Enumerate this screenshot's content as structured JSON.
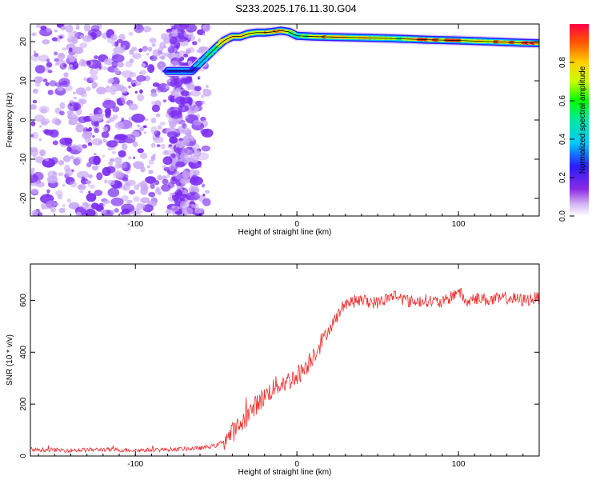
{
  "title": "S233.2025.176.11.30.G04",
  "chart_data": [
    {
      "type": "heatmap",
      "xlabel": "Height of straight line (km)",
      "ylabel": "Frequency (Hz)",
      "xlim": [
        -165,
        150
      ],
      "ylim": [
        -24.5,
        24.5
      ],
      "xticks": [
        -100,
        0,
        100
      ],
      "yticks": [
        -20,
        -10,
        0,
        10,
        20
      ],
      "colorbar": {
        "label": "Normalized spectral amplitude",
        "range": [
          0,
          1
        ],
        "ticks": [
          "0.0",
          "0.2",
          "0.4",
          "0.6",
          "0.8"
        ]
      },
      "ridge": {
        "x": [
          -80,
          -65,
          -60,
          -55,
          -50,
          -45,
          -40,
          -35,
          -30,
          -25,
          -20,
          -15,
          -10,
          -5,
          0,
          10,
          20,
          40,
          60,
          80,
          100,
          120,
          140,
          150
        ],
        "y": [
          12.5,
          12.5,
          14.5,
          16.5,
          18.5,
          20.3,
          21.3,
          21.3,
          22.0,
          22.3,
          22.3,
          22.5,
          22.8,
          22.5,
          21.5,
          21.3,
          21.2,
          21.0,
          20.8,
          20.5,
          20.3,
          20.0,
          19.7,
          19.6
        ],
        "amplitude": [
          0.3,
          0.3,
          0.45,
          0.55,
          0.6,
          0.8,
          0.9,
          0.85,
          0.8,
          0.75,
          0.9,
          0.85,
          0.95,
          0.8,
          0.6,
          0.85,
          0.9,
          0.85,
          0.75,
          0.95,
          0.9,
          0.85,
          0.95,
          0.9
        ]
      },
      "noise_region_x": [
        -165,
        -55
      ],
      "colors": {
        "noise": "#7a2cf0",
        "noise_light": "#c9a8f5"
      }
    },
    {
      "type": "line",
      "xlabel": "Height of straight line (km)",
      "ylabel": "SNR (10 * v/v)",
      "xlim": [
        -165,
        150
      ],
      "ylim": [
        0,
        740
      ],
      "xticks": [
        -100,
        0,
        100
      ],
      "yticks": [
        0,
        200,
        400,
        600
      ],
      "series": [
        {
          "color": "#ee2b2b",
          "x": [
            -165,
            -140,
            -120,
            -100,
            -80,
            -60,
            -50,
            -45,
            -40,
            -35,
            -30,
            -25,
            -20,
            -15,
            -10,
            -5,
            0,
            5,
            10,
            15,
            20,
            25,
            30,
            40,
            50,
            60,
            70,
            80,
            90,
            95,
            100,
            105,
            110,
            120,
            130,
            140,
            150
          ],
          "values": [
            25,
            22,
            25,
            22,
            25,
            30,
            40,
            60,
            90,
            120,
            160,
            200,
            230,
            260,
            280,
            290,
            310,
            340,
            390,
            440,
            490,
            540,
            590,
            600,
            590,
            620,
            595,
            600,
            590,
            610,
            640,
            590,
            610,
            600,
            610,
            600,
            610
          ]
        }
      ]
    }
  ]
}
